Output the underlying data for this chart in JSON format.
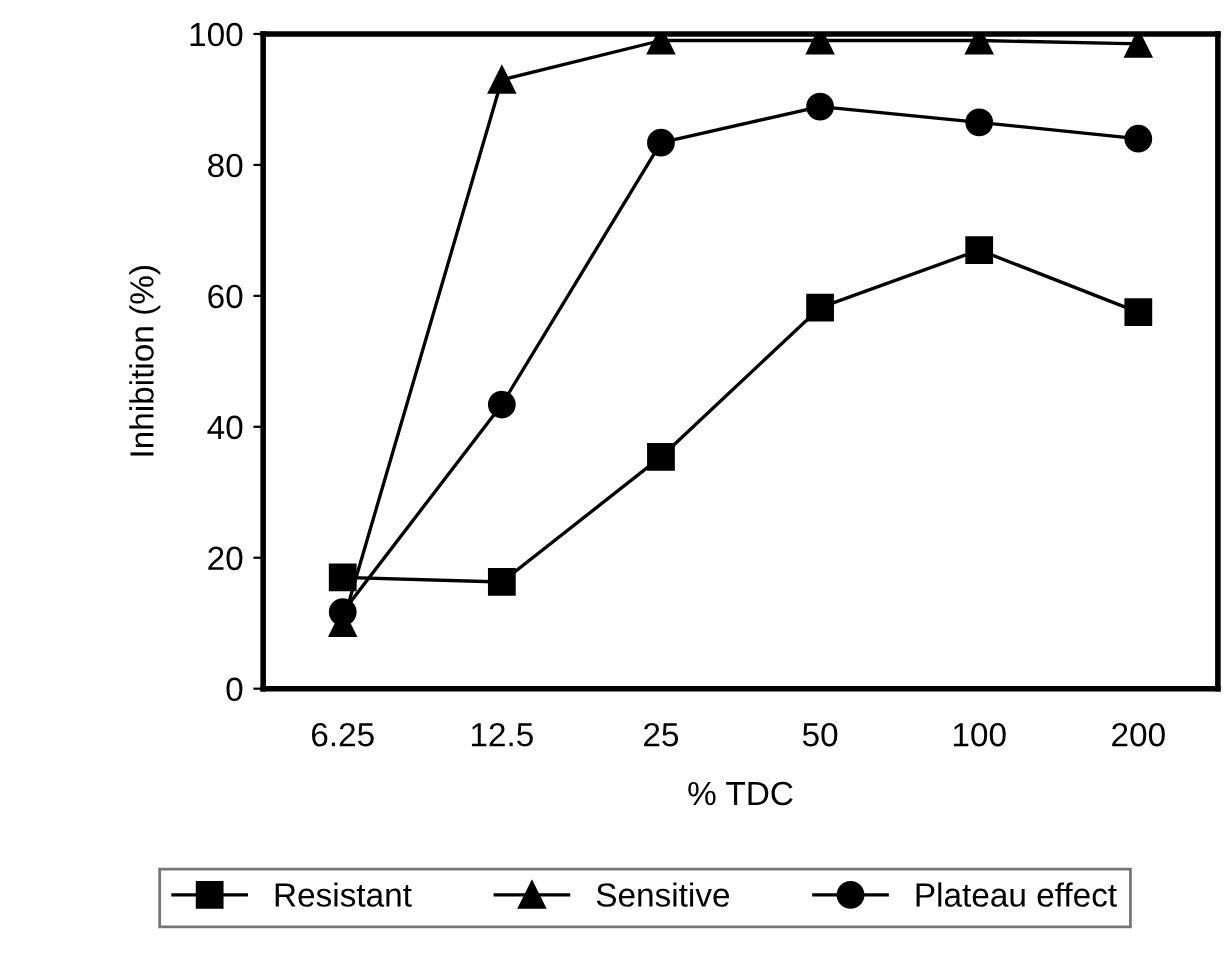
{
  "chart_data": {
    "type": "line",
    "xlabel": "% TDC",
    "ylabel": "Inhibition (%)",
    "categories": [
      "6.25",
      "12.5",
      "25",
      "50",
      "100",
      "200"
    ],
    "ylim": [
      0,
      100
    ],
    "yticks": [
      0,
      20,
      40,
      60,
      80,
      100
    ],
    "grid": false,
    "legend": "bottom",
    "series": [
      {
        "name": "Resistant",
        "color": "#000000",
        "marker": "square",
        "values": [
          17,
          16.3,
          35.4,
          58.2,
          67,
          57.5
        ]
      },
      {
        "name": "Sensitive",
        "color": "#000000",
        "marker": "triangle",
        "values": [
          10,
          93,
          99,
          99,
          99,
          98.5
        ]
      },
      {
        "name": "Plateau effect",
        "color": "#000000",
        "marker": "circle",
        "values": [
          11.7,
          43.4,
          83.4,
          88.9,
          86.5,
          84
        ]
      }
    ]
  }
}
